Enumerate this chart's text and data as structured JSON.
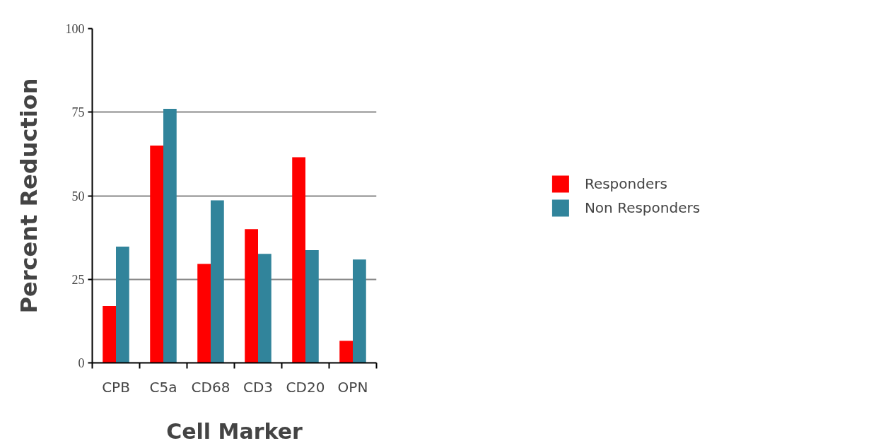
{
  "chart_data": {
    "type": "bar",
    "xlabel": "Cell Marker",
    "ylabel": "Percent Reduction",
    "categories": [
      "CPB",
      "C5a",
      "CD68",
      "CD3",
      "CD20",
      "OPN"
    ],
    "series": [
      {
        "name": "Responders",
        "color": "#ff0000",
        "values": [
          17,
          65,
          29.6,
          40,
          61.5,
          6.6
        ]
      },
      {
        "name": "Non Responders",
        "color": "#31849b",
        "values": [
          34.8,
          76,
          48.6,
          32.6,
          33.7,
          30.9
        ]
      }
    ],
    "ylim": [
      0,
      100
    ],
    "yticks": [
      0,
      25,
      50,
      75,
      100
    ],
    "grid": "y",
    "legend": "right"
  }
}
